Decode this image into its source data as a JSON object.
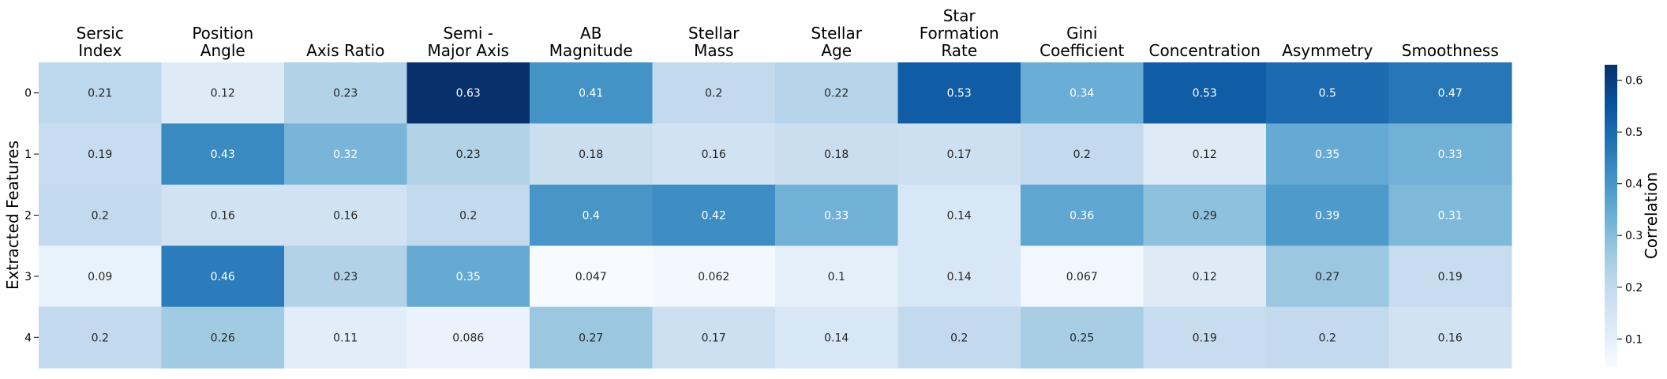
{
  "chart_data": {
    "type": "heatmap",
    "title": "",
    "xlabel": "",
    "ylabel": "Extracted Features",
    "columns": [
      [
        "Sersic",
        "Index"
      ],
      [
        "Position",
        "Angle"
      ],
      [
        "Axis Ratio"
      ],
      [
        "Semi -",
        "Major Axis"
      ],
      [
        "AB",
        "Magnitude"
      ],
      [
        "Stellar",
        "Mass"
      ],
      [
        "Stellar",
        "Age"
      ],
      [
        "Star",
        "Formation",
        "Rate"
      ],
      [
        "Gini",
        "Coefficient"
      ],
      [
        "Concentration"
      ],
      [
        "Asymmetry"
      ],
      [
        "Smoothness"
      ]
    ],
    "rows": [
      "0",
      "1",
      "2",
      "3",
      "4"
    ],
    "values": [
      [
        "0.21",
        "0.12",
        "0.23",
        "0.63",
        "0.41",
        "0.2",
        "0.22",
        "0.53",
        "0.34",
        "0.53",
        "0.5",
        "0.47"
      ],
      [
        "0.19",
        "0.43",
        "0.32",
        "0.23",
        "0.18",
        "0.16",
        "0.18",
        "0.17",
        "0.2",
        "0.12",
        "0.35",
        "0.33"
      ],
      [
        "0.2",
        "0.16",
        "0.16",
        "0.2",
        "0.4",
        "0.42",
        "0.33",
        "0.14",
        "0.36",
        "0.29",
        "0.39",
        "0.31"
      ],
      [
        "0.09",
        "0.46",
        "0.23",
        "0.35",
        "0.047",
        "0.062",
        "0.1",
        "0.14",
        "0.067",
        "0.12",
        "0.27",
        "0.19"
      ],
      [
        "0.2",
        "0.26",
        "0.11",
        "0.086",
        "0.27",
        "0.17",
        "0.14",
        "0.2",
        "0.25",
        "0.19",
        "0.2",
        "0.16"
      ]
    ],
    "colorbar": {
      "label": "Correlation",
      "ticks": [
        "0.1",
        "0.2",
        "0.3",
        "0.4",
        "0.5",
        "0.6"
      ],
      "range": [
        0.047,
        0.63
      ]
    },
    "colormap": "Blues",
    "colors": {
      "low": "#f7fbff",
      "high": "#08306b",
      "text_dark": "#262626",
      "text_light": "#ffffff"
    }
  }
}
